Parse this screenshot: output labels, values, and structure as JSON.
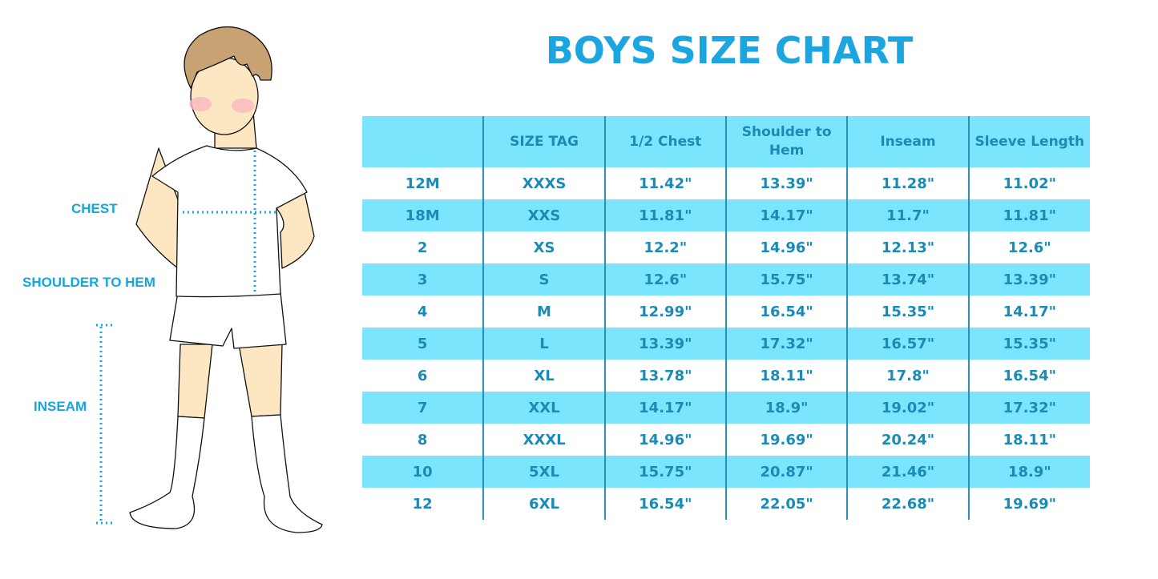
{
  "title": "BOYS SIZE CHART",
  "figure": {
    "labels": {
      "chest": "CHEST",
      "shoulder_to_hem": "SHOULDER TO HEM",
      "inseam": "INSEAM"
    }
  },
  "colors": {
    "accent": "#1ba6e2",
    "row_fill": "#7ae5fd",
    "text": "#1b8bb6"
  },
  "table": {
    "headers": [
      "",
      "SIZE TAG",
      "1/2 Chest",
      "Shoulder to Hem",
      "Inseam",
      "Sleeve Length"
    ],
    "rows": [
      [
        "12M",
        "XXXS",
        "11.42\"",
        "13.39\"",
        "11.28\"",
        "11.02\""
      ],
      [
        "18M",
        "XXS",
        "11.81\"",
        "14.17\"",
        "11.7\"",
        "11.81\""
      ],
      [
        "2",
        "XS",
        "12.2\"",
        "14.96\"",
        "12.13\"",
        "12.6\""
      ],
      [
        "3",
        "S",
        "12.6\"",
        "15.75\"",
        "13.74\"",
        "13.39\""
      ],
      [
        "4",
        "M",
        "12.99\"",
        "16.54\"",
        "15.35\"",
        "14.17\""
      ],
      [
        "5",
        "L",
        "13.39\"",
        "17.32\"",
        "16.57\"",
        "15.35\""
      ],
      [
        "6",
        "XL",
        "13.78\"",
        "18.11\"",
        "17.8\"",
        "16.54\""
      ],
      [
        "7",
        "XXL",
        "14.17\"",
        "18.9\"",
        "19.02\"",
        "17.32\""
      ],
      [
        "8",
        "XXXL",
        "14.96\"",
        "19.69\"",
        "20.24\"",
        "18.11\""
      ],
      [
        "10",
        "5XL",
        "15.75\"",
        "20.87\"",
        "21.46\"",
        "18.9\""
      ],
      [
        "12",
        "6XL",
        "16.54\"",
        "22.05\"",
        "22.68\"",
        "19.69\""
      ]
    ]
  }
}
